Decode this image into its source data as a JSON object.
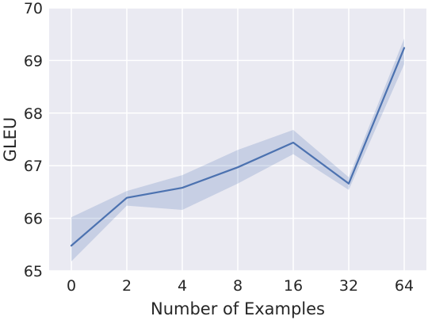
{
  "chart_data": {
    "type": "line",
    "title": "",
    "xlabel": "Number of Examples",
    "ylabel": "GLEU",
    "x": [
      "0",
      "2",
      "4",
      "8",
      "16",
      "32",
      "64"
    ],
    "series": [
      {
        "values": [
          65.48,
          66.39,
          66.58,
          66.97,
          67.44,
          66.66,
          69.24
        ],
        "ci_lower": [
          65.18,
          66.24,
          66.16,
          66.66,
          67.22,
          66.54,
          68.93
        ],
        "ci_upper": [
          66.02,
          66.52,
          66.82,
          67.3,
          67.68,
          66.78,
          69.42
        ]
      }
    ],
    "ylim": [
      65,
      70
    ],
    "yticks": [
      "65",
      "66",
      "67",
      "68",
      "69",
      "70"
    ],
    "grid": true,
    "colors": {
      "line": "#4c72b0",
      "band": "#4c72b0",
      "plot_background": "#eaeaf2",
      "grid": "#ffffff",
      "text": "#262626"
    }
  }
}
